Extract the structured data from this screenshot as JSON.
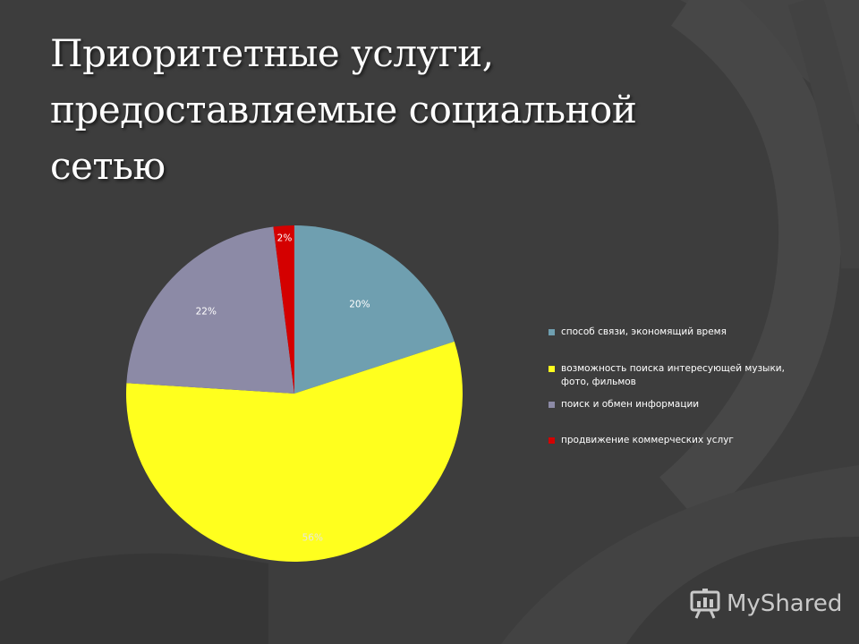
{
  "slide": {
    "title_lines": [
      "Приоритетные услуги,",
      "предоставляемые социальной",
      "сетью"
    ],
    "background_color": "#3c3c3c"
  },
  "chart_data": {
    "type": "pie",
    "categories": [
      "способ связи, экономящий время",
      "возможность поиска интересующей музыки, фото, фильмов",
      "поиск и обмен информации",
      "продвижение коммерческих услуг"
    ],
    "values": [
      20,
      56,
      22,
      2
    ],
    "data_labels": [
      "20%",
      "56%",
      "22%",
      "2%"
    ],
    "colors": [
      "#6f9fb0",
      "#ffff1e",
      "#8c8aa6",
      "#d40000"
    ],
    "legend": {
      "placement": "right",
      "entries": [
        "способ связи, экономящий время",
        "возможность поиска интересующей музыки, фото, фильмов",
        "поиск и обмен информации",
        "продвижение коммерческих услуг"
      ]
    },
    "start_angle_deg": 0,
    "direction": "clockwise"
  },
  "watermark": {
    "text": "MyShared",
    "icon": "presentation-board-icon"
  }
}
